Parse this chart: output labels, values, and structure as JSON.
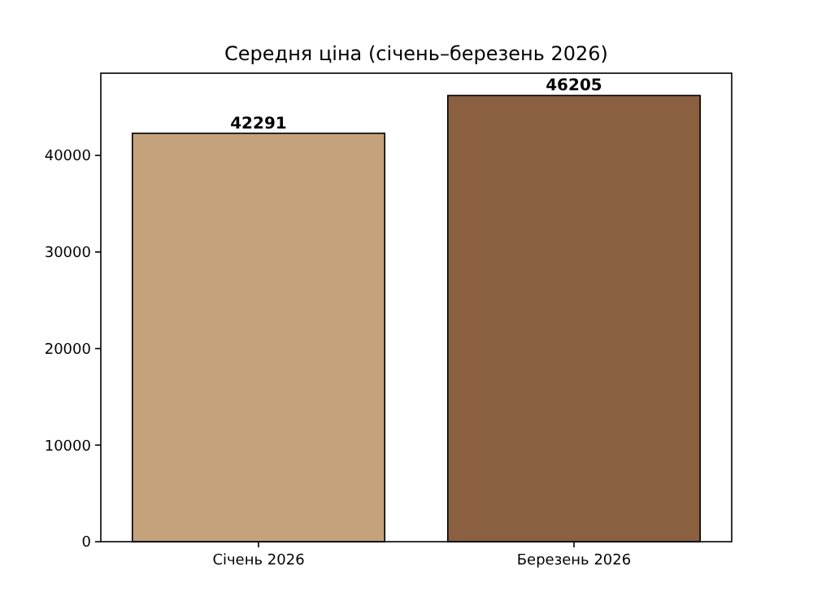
{
  "chart_data": {
    "type": "bar",
    "title": "Середня ціна (січень–березень 2026)",
    "categories": [
      "Січень 2026",
      "Березень 2026"
    ],
    "values": [
      42291,
      46205
    ],
    "colors": [
      "#c4a27c",
      "#8b6040"
    ],
    "ylim": [
      0,
      48515
    ],
    "yticks": [
      0,
      10000,
      20000,
      30000,
      40000
    ],
    "data_labels": true
  }
}
